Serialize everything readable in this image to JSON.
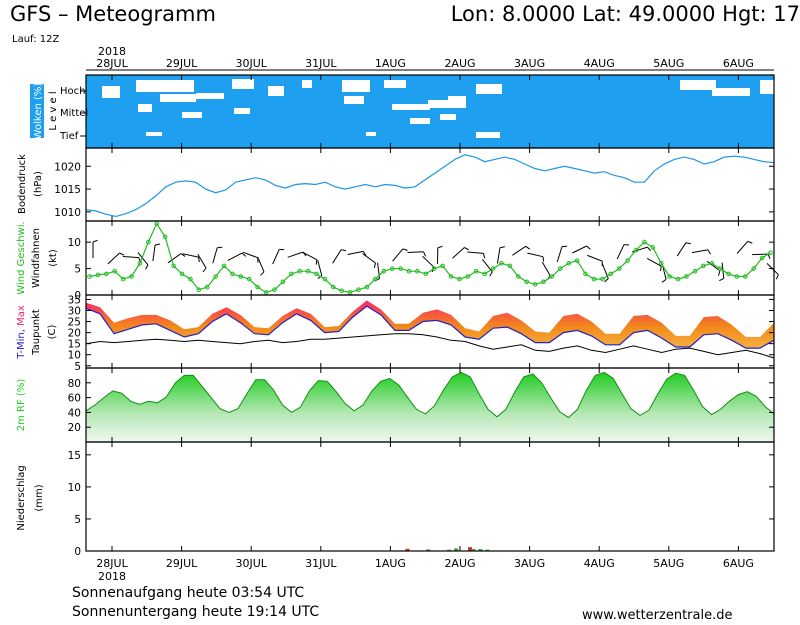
{
  "header": {
    "title": "GFS – Meteogramm",
    "coords": "Lon: 8.0000 Lat: 49.0000 Hgt: 17",
    "run": "Lauf: 12Z"
  },
  "footer": {
    "sunrise": "Sonnenaufgang heute 03:54 UTC",
    "sunset": "Sonnenuntergang heute 19:14 UTC",
    "site": "www.wetterzentrale.de"
  },
  "colors": {
    "cloud_blue": "#1e9ff0",
    "pressure_line": "#1e96e6",
    "wind_green": "#22bb22",
    "tmax": "#ff2266",
    "tmin": "#2222cc",
    "temp_band": "#f2891a",
    "rh_green": "#20cc20",
    "precip_red": "#d03020",
    "precip_green": "#30a030"
  },
  "chart_data": {
    "type": "line",
    "x_axis": {
      "year_label": "2018",
      "dates": [
        "28JUL",
        "29JUL",
        "30JUL",
        "31JUL",
        "1AUG",
        "2AUG",
        "3AUG",
        "4AUG",
        "5AUG",
        "6AUG"
      ]
    },
    "panels": {
      "clouds": {
        "ylabel": "Wolken (%)",
        "sublabel": "L e v e l",
        "levels": [
          "Hoch",
          "Mittel",
          "Tief"
        ]
      },
      "pressure": {
        "ylabel": "Bodendruck",
        "unit": "(hPa)",
        "ylim": [
          1008,
          1024
        ],
        "ticks": [
          1010,
          1015,
          1020
        ],
        "values": [
          1010.5,
          1010.2,
          1009.5,
          1009.0,
          1009.6,
          1010.5,
          1011.8,
          1013.5,
          1015.5,
          1016.5,
          1016.8,
          1016.5,
          1015.0,
          1014.2,
          1014.8,
          1016.5,
          1017.0,
          1017.5,
          1017.0,
          1015.8,
          1015.2,
          1016.0,
          1016.2,
          1016.0,
          1016.5,
          1015.5,
          1015.0,
          1015.5,
          1016.0,
          1015.5,
          1016.0,
          1015.8,
          1015.2,
          1015.5,
          1017.0,
          1018.5,
          1020.0,
          1021.5,
          1022.5,
          1022.0,
          1021.0,
          1021.5,
          1022.0,
          1021.5,
          1020.5,
          1019.5,
          1019.0,
          1019.5,
          1020.0,
          1019.5,
          1019.0,
          1018.5,
          1018.8,
          1018.0,
          1017.5,
          1016.5,
          1016.5,
          1019.0,
          1020.5,
          1021.5,
          1022.0,
          1021.5,
          1020.5,
          1021.0,
          1022.0,
          1022.2,
          1022.0,
          1021.5,
          1021.0,
          1020.8
        ]
      },
      "wind": {
        "ylabel": "Wind Geschwi.",
        "sublabel": "Windfahnen",
        "unit": "(kt)",
        "ylim": [
          0,
          14
        ],
        "ticks": [
          0,
          5,
          10
        ],
        "values": [
          3.5,
          3.8,
          4.0,
          4.5,
          3.0,
          3.5,
          6.0,
          10.0,
          13.5,
          11.0,
          5.5,
          4.0,
          3.0,
          1.0,
          1.5,
          3.5,
          5.5,
          4.0,
          3.5,
          3.0,
          1.5,
          0.5,
          1.0,
          2.5,
          4.0,
          4.5,
          4.5,
          4.0,
          3.0,
          1.5,
          0.8,
          0.5,
          1.0,
          1.5,
          3.0,
          4.5,
          5.0,
          5.0,
          4.5,
          4.5,
          4.0,
          5.0,
          5.5,
          3.5,
          3.0,
          3.5,
          4.5,
          4.0,
          5.0,
          6.0,
          5.5,
          3.5,
          2.5,
          2.0,
          2.5,
          3.5,
          5.0,
          6.0,
          6.5,
          4.0,
          3.0,
          3.0,
          4.0,
          5.0,
          6.5,
          8.5,
          10.0,
          9.0,
          6.0,
          3.5,
          3.0,
          3.5,
          4.5,
          5.5,
          6.0,
          5.0,
          4.0,
          3.5,
          3.5,
          5.0,
          7.0,
          8.0
        ]
      },
      "temperature": {
        "ylabel_parts": [
          "T-Min, ",
          "Max"
        ],
        "sublabel": "Taupunkt",
        "unit": "(C)",
        "ylim": [
          4,
          37
        ],
        "ticks": [
          5,
          10,
          15,
          20,
          25,
          30,
          35
        ],
        "tmax": [
          33.5,
          31.5,
          24.5,
          26.5,
          28.0,
          28.0,
          25.5,
          21.5,
          22.5,
          28.5,
          31.5,
          28.0,
          22.5,
          22.0,
          27.5,
          31.0,
          28.5,
          22.5,
          23.0,
          29.5,
          34.5,
          30.5,
          24.0,
          24.0,
          29.0,
          30.5,
          28.0,
          22.0,
          20.5,
          27.5,
          29.0,
          25.5,
          20.5,
          20.0,
          27.5,
          28.5,
          25.0,
          19.5,
          19.5,
          27.5,
          28.0,
          24.5,
          18.5,
          18.5,
          27.0,
          27.5,
          23.5,
          18.0,
          18.0,
          24.5
        ],
        "tmin": [
          31.0,
          28.5,
          19.5,
          21.5,
          23.5,
          24.0,
          21.0,
          18.0,
          19.5,
          25.0,
          28.5,
          24.5,
          19.5,
          19.0,
          24.5,
          28.5,
          25.5,
          20.0,
          20.5,
          27.0,
          32.0,
          28.0,
          21.0,
          21.0,
          25.0,
          25.5,
          23.5,
          18.0,
          17.0,
          22.0,
          22.5,
          19.5,
          15.5,
          15.5,
          20.0,
          21.0,
          18.5,
          14.5,
          14.5,
          20.0,
          21.0,
          17.5,
          13.5,
          13.5,
          19.0,
          19.5,
          16.5,
          13.0,
          13.0,
          16.5
        ],
        "dewpoint": [
          15.0,
          16.0,
          15.5,
          16.0,
          16.5,
          17.0,
          16.5,
          16.0,
          16.5,
          16.0,
          15.5,
          15.0,
          16.0,
          16.5,
          15.5,
          16.0,
          17.0,
          17.0,
          17.5,
          18.0,
          18.5,
          19.0,
          19.5,
          19.5,
          19.0,
          18.0,
          16.5,
          16.0,
          14.0,
          12.5,
          13.5,
          14.5,
          12.0,
          11.5,
          13.0,
          14.0,
          12.0,
          11.0,
          12.5,
          14.0,
          12.5,
          11.0,
          12.5,
          13.0,
          11.5,
          10.0,
          11.0,
          12.0,
          10.5,
          8.5
        ]
      },
      "humidity": {
        "ylabel": "2m RF (%)",
        "ylim": [
          0,
          100
        ],
        "ticks": [
          20,
          40,
          60,
          80
        ],
        "values": [
          42,
          50,
          60,
          69,
          66,
          55,
          51,
          55,
          53,
          61,
          80,
          90,
          90,
          75,
          60,
          45,
          40,
          45,
          65,
          84,
          84,
          70,
          50,
          40,
          47,
          69,
          83,
          82,
          68,
          52,
          42,
          50,
          69,
          82,
          86,
          77,
          60,
          44,
          38,
          49,
          70,
          88,
          94,
          88,
          65,
          44,
          34,
          44,
          68,
          88,
          92,
          80,
          60,
          41,
          33,
          44,
          70,
          90,
          94,
          86,
          65,
          45,
          36,
          43,
          65,
          85,
          93,
          90,
          70,
          48,
          37,
          44,
          55,
          64,
          68,
          62,
          48,
          38
        ]
      },
      "precipitation": {
        "ylabel": "Niederschlag",
        "unit": "(mm)",
        "ylim": [
          0,
          17
        ],
        "ticks": [
          0,
          5,
          10,
          15
        ],
        "bars": [
          {
            "x": 4.25,
            "value": 0.35,
            "color": "red"
          },
          {
            "x": 4.55,
            "value": 0.25,
            "color": "green"
          },
          {
            "x": 4.85,
            "value": 0.2,
            "color": "green"
          },
          {
            "x": 4.95,
            "value": 0.4,
            "color": "green"
          },
          {
            "x": 5.15,
            "value": 0.6,
            "color": "red"
          },
          {
            "x": 5.2,
            "value": 0.3,
            "color": "green"
          },
          {
            "x": 5.3,
            "value": 0.3,
            "color": "green"
          },
          {
            "x": 5.4,
            "value": 0.2,
            "color": "green"
          }
        ]
      }
    }
  }
}
